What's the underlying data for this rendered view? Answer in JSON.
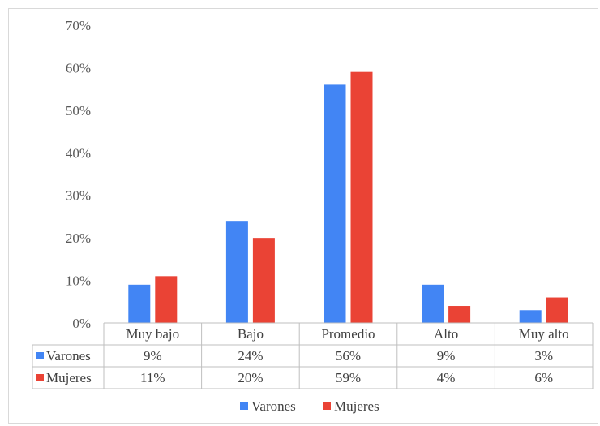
{
  "chart_data": {
    "type": "bar",
    "categories": [
      "Muy bajo",
      "Bajo",
      "Promedio",
      "Alto",
      "Muy alto"
    ],
    "series": [
      {
        "name": "Varones",
        "color": "#4285f4",
        "values": [
          9,
          24,
          56,
          9,
          3
        ],
        "labels": [
          "9%",
          "24%",
          "56%",
          "9%",
          "3%"
        ]
      },
      {
        "name": "Mujeres",
        "color": "#ea4335",
        "values": [
          11,
          20,
          59,
          4,
          6
        ],
        "labels": [
          "11%",
          "20%",
          "59%",
          "4%",
          "6%"
        ]
      }
    ],
    "yticks": [
      "0%",
      "10%",
      "20%",
      "30%",
      "40%",
      "50%",
      "60%",
      "70%"
    ],
    "ylim": [
      0,
      70
    ],
    "grid": false,
    "data_table": true,
    "legend": "bottom"
  }
}
